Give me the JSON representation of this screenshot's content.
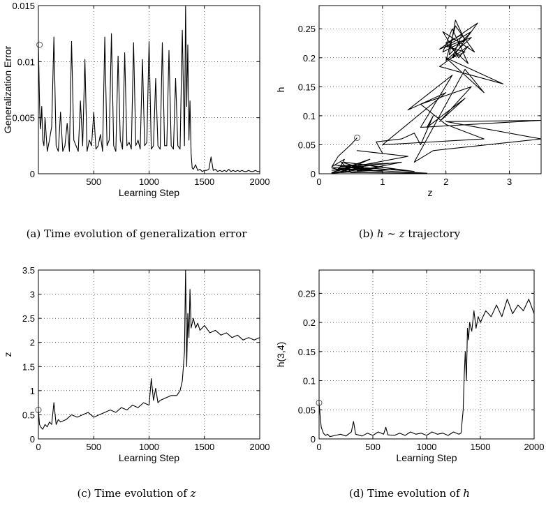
{
  "chart_data": [
    {
      "type": "line",
      "title": "",
      "caption": "(a) Time evolution of generalization error",
      "xlabel": "Learning Step",
      "ylabel": "Generalization Error",
      "xlim": [
        0,
        2000
      ],
      "ylim": [
        0,
        0.015
      ],
      "xticks": [
        500,
        1000,
        1500,
        2000
      ],
      "xtick_labels": [
        "500",
        "1000",
        "1500",
        "2000"
      ],
      "yticks": [
        0,
        0.005,
        0.01,
        0.015
      ],
      "ytick_labels": [
        "0",
        "0.005",
        "0.01",
        "0.015"
      ],
      "grid": true,
      "marker": {
        "x": 10,
        "y": 0.0115
      },
      "series": [
        {
          "x": [
            0,
            5,
            10,
            15,
            20,
            30,
            40,
            50,
            60,
            80,
            100,
            120,
            140,
            160,
            180,
            200,
            220,
            240,
            260,
            280,
            300,
            320,
            340,
            360,
            380,
            400,
            420,
            440,
            460,
            480,
            500,
            520,
            540,
            560,
            580,
            600,
            620,
            640,
            660,
            680,
            700,
            720,
            740,
            760,
            780,
            800,
            820,
            840,
            860,
            880,
            900,
            920,
            940,
            960,
            980,
            1000,
            1020,
            1040,
            1060,
            1080,
            1100,
            1120,
            1140,
            1160,
            1180,
            1200,
            1220,
            1240,
            1260,
            1280,
            1300,
            1320,
            1330,
            1340,
            1350,
            1360,
            1370,
            1380,
            1390,
            1400,
            1420,
            1440,
            1460,
            1480,
            1500,
            1520,
            1540,
            1560,
            1580,
            1600,
            1620,
            1640,
            1660,
            1680,
            1700,
            1720,
            1740,
            1760,
            1780,
            1800,
            1820,
            1840,
            1860,
            1880,
            1900,
            1920,
            1940,
            1960,
            1980,
            2000
          ],
          "y": [
            0.0115,
            0.009,
            0.0065,
            0.0045,
            0.004,
            0.006,
            0.003,
            0.0025,
            0.005,
            0.002,
            0.003,
            0.0042,
            0.0122,
            0.0025,
            0.002,
            0.0055,
            0.002,
            0.0025,
            0.0045,
            0.002,
            0.0118,
            0.003,
            0.0025,
            0.002,
            0.0065,
            0.0025,
            0.0102,
            0.002,
            0.003,
            0.0025,
            0.0055,
            0.0022,
            0.0025,
            0.0035,
            0.002,
            0.0122,
            0.0025,
            0.003,
            0.0125,
            0.0025,
            0.002,
            0.0105,
            0.003,
            0.0022,
            0.0108,
            0.0025,
            0.0028,
            0.0022,
            0.0117,
            0.0025,
            0.003,
            0.0022,
            0.0102,
            0.0025,
            0.0028,
            0.0118,
            0.0022,
            0.0025,
            0.0085,
            0.0025,
            0.0022,
            0.0117,
            0.0025,
            0.0025,
            0.011,
            0.0025,
            0.0022,
            0.0085,
            0.0025,
            0.0022,
            0.0128,
            0.0025,
            0.015,
            0.006,
            0.0115,
            0.003,
            0.0065,
            0.0018,
            0.0005,
            0.0004,
            0.0008,
            0.0003,
            0.0004,
            0.0002,
            0.0003,
            0.0003,
            0.0004,
            0.0015,
            0.0003,
            0.0004,
            0.0002,
            0.0003,
            0.0002,
            0.0003,
            0.0002,
            0.0004,
            0.0002,
            0.0003,
            0.0002,
            0.0003,
            0.0002,
            0.0003,
            0.0002,
            0.0002,
            0.0003,
            0.0002,
            0.0002,
            0.0003,
            0.0002,
            0.0002
          ]
        }
      ]
    },
    {
      "type": "line",
      "title": "",
      "caption_prefix": "(b) ",
      "caption_math": "h ∼ z",
      "caption_suffix": " trajectory",
      "xlabel": "z",
      "ylabel": "h",
      "xlim": [
        0,
        3.5
      ],
      "ylim": [
        0,
        0.29
      ],
      "xticks": [
        0,
        1,
        2,
        3
      ],
      "xtick_labels": [
        "0",
        "1",
        "2",
        "3"
      ],
      "yticks": [
        0,
        0.05,
        0.1,
        0.15,
        0.2,
        0.25
      ],
      "ytick_labels": [
        "0",
        "0.05",
        "0.1",
        "0.15",
        "0.2",
        "0.25"
      ],
      "grid": true,
      "marker": {
        "x": 0.6,
        "y": 0.062
      },
      "series": [
        {
          "x": [
            0.6,
            0.5,
            0.3,
            0.2,
            0.4,
            0.3,
            0.6,
            0.2,
            0.5,
            0.35,
            0.8,
            0.25,
            1.0,
            0.3,
            0.7,
            0.2,
            1.2,
            0.4,
            1.5,
            0.3,
            1.1,
            0.2,
            0.9,
            0.5,
            1.7,
            0.3,
            1.3,
            0.6,
            1.0,
            0.35,
            0.8,
            0.2,
            0.5,
            0.25,
            1.4,
            0.6,
            1.0,
            0.9,
            1.3,
            1.5,
            1.6,
            1.8,
            1.7,
            2.3,
            1.9,
            2.4,
            1.6,
            2.0,
            2.6,
            1.0,
            2.0,
            1.4,
            2.1,
            1.6,
            3.5,
            2.0,
            3.5,
            1.8,
            1.5,
            2.3,
            2.6,
            2.0,
            2.9,
            1.9,
            2.35,
            2.2,
            1.95,
            2.45,
            2.15,
            2.0,
            2.4,
            1.9,
            2.5,
            2.1,
            2.25,
            2.0,
            2.35,
            2.1,
            1.95,
            2.3,
            2.15,
            2.05,
            2.4,
            2.0,
            2.3,
            2.1
          ],
          "y": [
            0.062,
            0.05,
            0.03,
            0.012,
            0.025,
            0.005,
            0.015,
            0.01,
            0.003,
            0.02,
            0.006,
            0.015,
            0.004,
            0.008,
            0.012,
            0.001,
            0.008,
            0.02,
            0.004,
            0.014,
            0.018,
            0.006,
            0.01,
            0.002,
            0.001,
            0.009,
            0.02,
            0.005,
            0.012,
            0.003,
            0.025,
            0.002,
            0.012,
            0.006,
            0.03,
            0.04,
            0.035,
            0.055,
            0.06,
            0.07,
            0.05,
            0.1,
            0.08,
            0.13,
            0.09,
            0.15,
            0.12,
            0.085,
            0.06,
            0.05,
            0.14,
            0.11,
            0.17,
            0.08,
            0.092,
            0.09,
            0.06,
            0.04,
            0.02,
            0.18,
            0.14,
            0.2,
            0.155,
            0.185,
            0.22,
            0.2,
            0.245,
            0.21,
            0.255,
            0.195,
            0.235,
            0.215,
            0.26,
            0.2,
            0.24,
            0.225,
            0.19,
            0.25,
            0.21,
            0.23,
            0.265,
            0.205,
            0.245,
            0.22,
            0.21,
            0.2
          ]
        }
      ]
    },
    {
      "type": "line",
      "title": "",
      "caption_prefix": "(c) Time evolution of ",
      "caption_math": "z",
      "caption_suffix": "",
      "xlabel": "Learning Step",
      "ylabel": "z",
      "xlim": [
        0,
        2000
      ],
      "ylim": [
        0,
        3.5
      ],
      "xticks": [
        0,
        500,
        1000,
        1500,
        2000
      ],
      "xtick_labels": [
        "0",
        "500",
        "1000",
        "1500",
        "2000"
      ],
      "yticks": [
        0,
        0.5,
        1,
        1.5,
        2,
        2.5,
        3,
        3.5
      ],
      "ytick_labels": [
        "0",
        "0.5",
        "1",
        "1.5",
        "2",
        "2.5",
        "3",
        "3.5"
      ],
      "grid": true,
      "marker": {
        "x": 0,
        "y": 0.6
      },
      "series": [
        {
          "x": [
            0,
            10,
            20,
            40,
            60,
            80,
            100,
            120,
            140,
            160,
            180,
            200,
            250,
            300,
            350,
            400,
            450,
            500,
            550,
            600,
            650,
            700,
            750,
            800,
            850,
            900,
            950,
            1000,
            1020,
            1040,
            1060,
            1080,
            1100,
            1150,
            1200,
            1250,
            1280,
            1300,
            1320,
            1330,
            1340,
            1350,
            1360,
            1370,
            1380,
            1400,
            1420,
            1440,
            1460,
            1480,
            1500,
            1550,
            1600,
            1650,
            1700,
            1750,
            1800,
            1850,
            1900,
            1950,
            2000
          ],
          "y": [
            0.6,
            0.3,
            0.25,
            0.2,
            0.3,
            0.25,
            0.35,
            0.3,
            0.75,
            0.3,
            0.4,
            0.35,
            0.4,
            0.5,
            0.45,
            0.5,
            0.55,
            0.45,
            0.5,
            0.55,
            0.6,
            0.55,
            0.65,
            0.6,
            0.7,
            0.65,
            0.75,
            0.7,
            1.25,
            0.8,
            1.05,
            0.75,
            0.8,
            0.85,
            0.9,
            0.9,
            1.0,
            1.2,
            1.8,
            3.5,
            1.5,
            2.6,
            2.1,
            3.1,
            2.3,
            2.5,
            2.3,
            2.4,
            2.25,
            2.3,
            2.35,
            2.2,
            2.25,
            2.15,
            2.2,
            2.1,
            2.15,
            2.05,
            2.1,
            2.05,
            2.1
          ]
        }
      ]
    },
    {
      "type": "line",
      "title": "",
      "caption_prefix": "(d) Time evolution of ",
      "caption_math": "h",
      "caption_suffix": "",
      "xlabel": "Learning Step",
      "ylabel": "h(3,4)",
      "xlim": [
        0,
        2000
      ],
      "ylim": [
        0,
        0.29
      ],
      "xticks": [
        0,
        500,
        1000,
        1500,
        2000
      ],
      "xtick_labels": [
        "0",
        "500",
        "1000",
        "1500",
        "2000"
      ],
      "yticks": [
        0,
        0.05,
        0.1,
        0.15,
        0.2,
        0.25
      ],
      "ytick_labels": [
        "0",
        "0.05",
        "0.1",
        "0.15",
        "0.2",
        "0.25"
      ],
      "grid": true,
      "marker": {
        "x": 0,
        "y": 0.062
      },
      "series": [
        {
          "x": [
            0,
            10,
            20,
            40,
            60,
            80,
            100,
            150,
            200,
            250,
            300,
            320,
            340,
            400,
            450,
            500,
            550,
            600,
            620,
            640,
            700,
            750,
            800,
            850,
            900,
            950,
            1000,
            1050,
            1100,
            1150,
            1200,
            1250,
            1300,
            1320,
            1340,
            1350,
            1360,
            1370,
            1380,
            1390,
            1400,
            1420,
            1440,
            1460,
            1480,
            1500,
            1550,
            1600,
            1650,
            1700,
            1750,
            1800,
            1850,
            1900,
            1950,
            1980,
            2000
          ],
          "y": [
            0.062,
            0.04,
            0.02,
            0.01,
            0.006,
            0.008,
            0.004,
            0.006,
            0.008,
            0.005,
            0.012,
            0.03,
            0.008,
            0.005,
            0.01,
            0.006,
            0.012,
            0.008,
            0.02,
            0.007,
            0.006,
            0.01,
            0.006,
            0.012,
            0.008,
            0.01,
            0.006,
            0.012,
            0.008,
            0.01,
            0.006,
            0.012,
            0.008,
            0.01,
            0.05,
            0.11,
            0.15,
            0.1,
            0.19,
            0.17,
            0.2,
            0.185,
            0.22,
            0.19,
            0.21,
            0.2,
            0.22,
            0.21,
            0.23,
            0.21,
            0.24,
            0.215,
            0.23,
            0.22,
            0.24,
            0.225,
            0.215
          ]
        }
      ]
    }
  ]
}
